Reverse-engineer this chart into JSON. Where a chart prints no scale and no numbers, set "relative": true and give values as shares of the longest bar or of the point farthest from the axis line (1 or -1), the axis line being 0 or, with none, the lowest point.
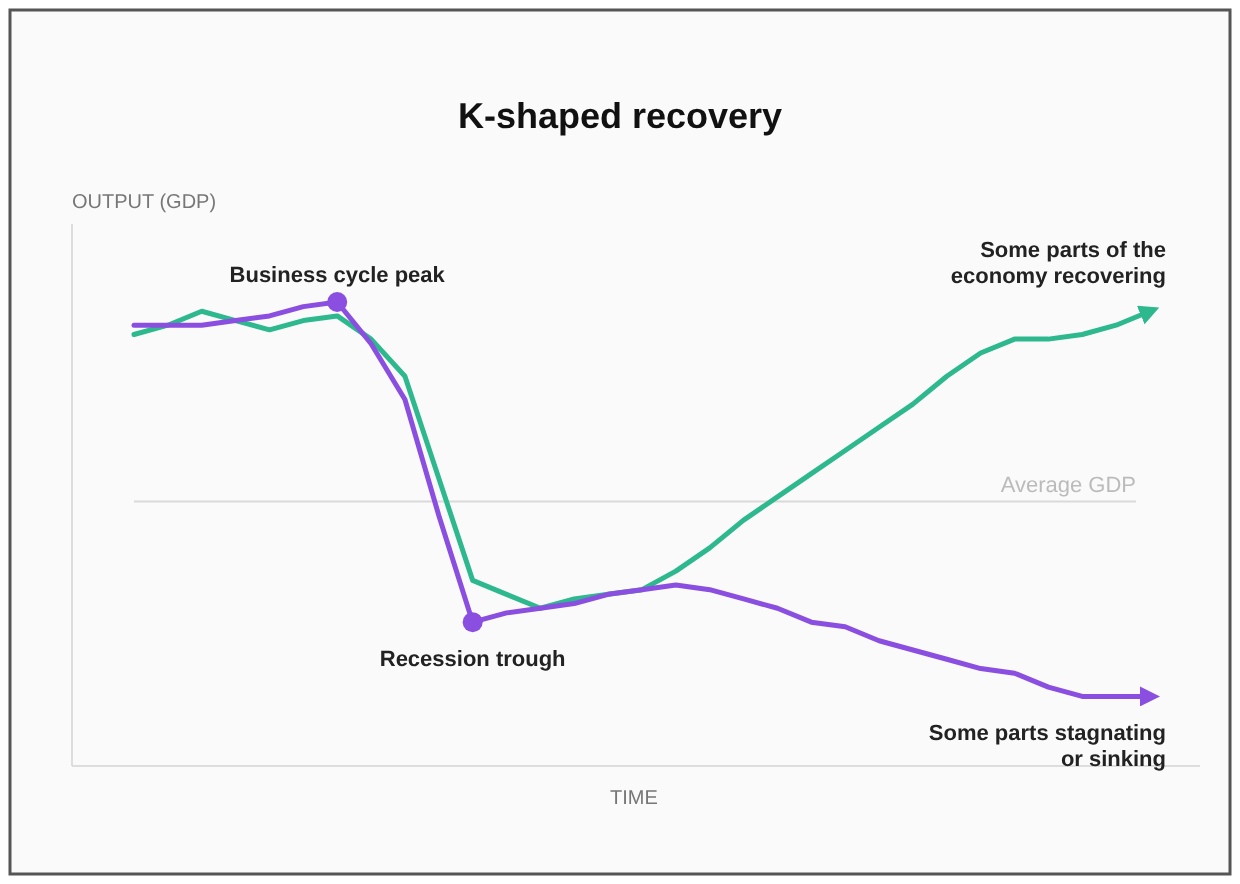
{
  "chart_data": {
    "type": "line",
    "title": "K-shaped recovery",
    "xlabel": "TIME",
    "ylabel": "OUTPUT (GDP)",
    "relative": true,
    "categories": [
      null,
      null,
      null,
      null,
      null,
      null,
      null,
      null,
      null,
      null,
      null,
      null,
      null,
      null,
      null,
      null,
      null,
      null,
      null,
      null,
      null,
      null,
      null,
      null,
      null,
      null,
      null,
      null,
      null,
      null,
      null
    ],
    "series": [
      {
        "name": "Some parts of the economy recovering",
        "color": "#2db88e",
        "values": [
          0.93,
          0.95,
          0.98,
          0.96,
          0.94,
          0.96,
          0.97,
          0.92,
          0.84,
          0.62,
          0.4,
          0.37,
          0.34,
          0.36,
          0.37,
          0.38,
          0.42,
          0.47,
          0.53,
          0.58,
          0.63,
          0.68,
          0.73,
          0.78,
          0.84,
          0.89,
          0.92,
          0.92,
          0.93,
          0.95,
          0.98
        ]
      },
      {
        "name": "Some parts stagnating or sinking",
        "color": "#8a4fe0",
        "values": [
          0.95,
          0.95,
          0.95,
          0.96,
          0.97,
          0.99,
          1.0,
          0.91,
          0.79,
          0.54,
          0.31,
          0.33,
          0.34,
          0.35,
          0.37,
          0.38,
          0.39,
          0.38,
          0.36,
          0.34,
          0.31,
          0.3,
          0.27,
          0.25,
          0.23,
          0.21,
          0.2,
          0.17,
          0.15,
          0.15,
          0.15
        ]
      }
    ],
    "annotations": [
      {
        "text": "Business cycle peak",
        "y": 1.0
      },
      {
        "text": "Recession trough",
        "y": 0.31
      }
    ],
    "ref_lines": [
      {
        "axis": "y",
        "value": 0.57,
        "label": "Average GDP",
        "color": "#d9d9d9"
      }
    ]
  }
}
